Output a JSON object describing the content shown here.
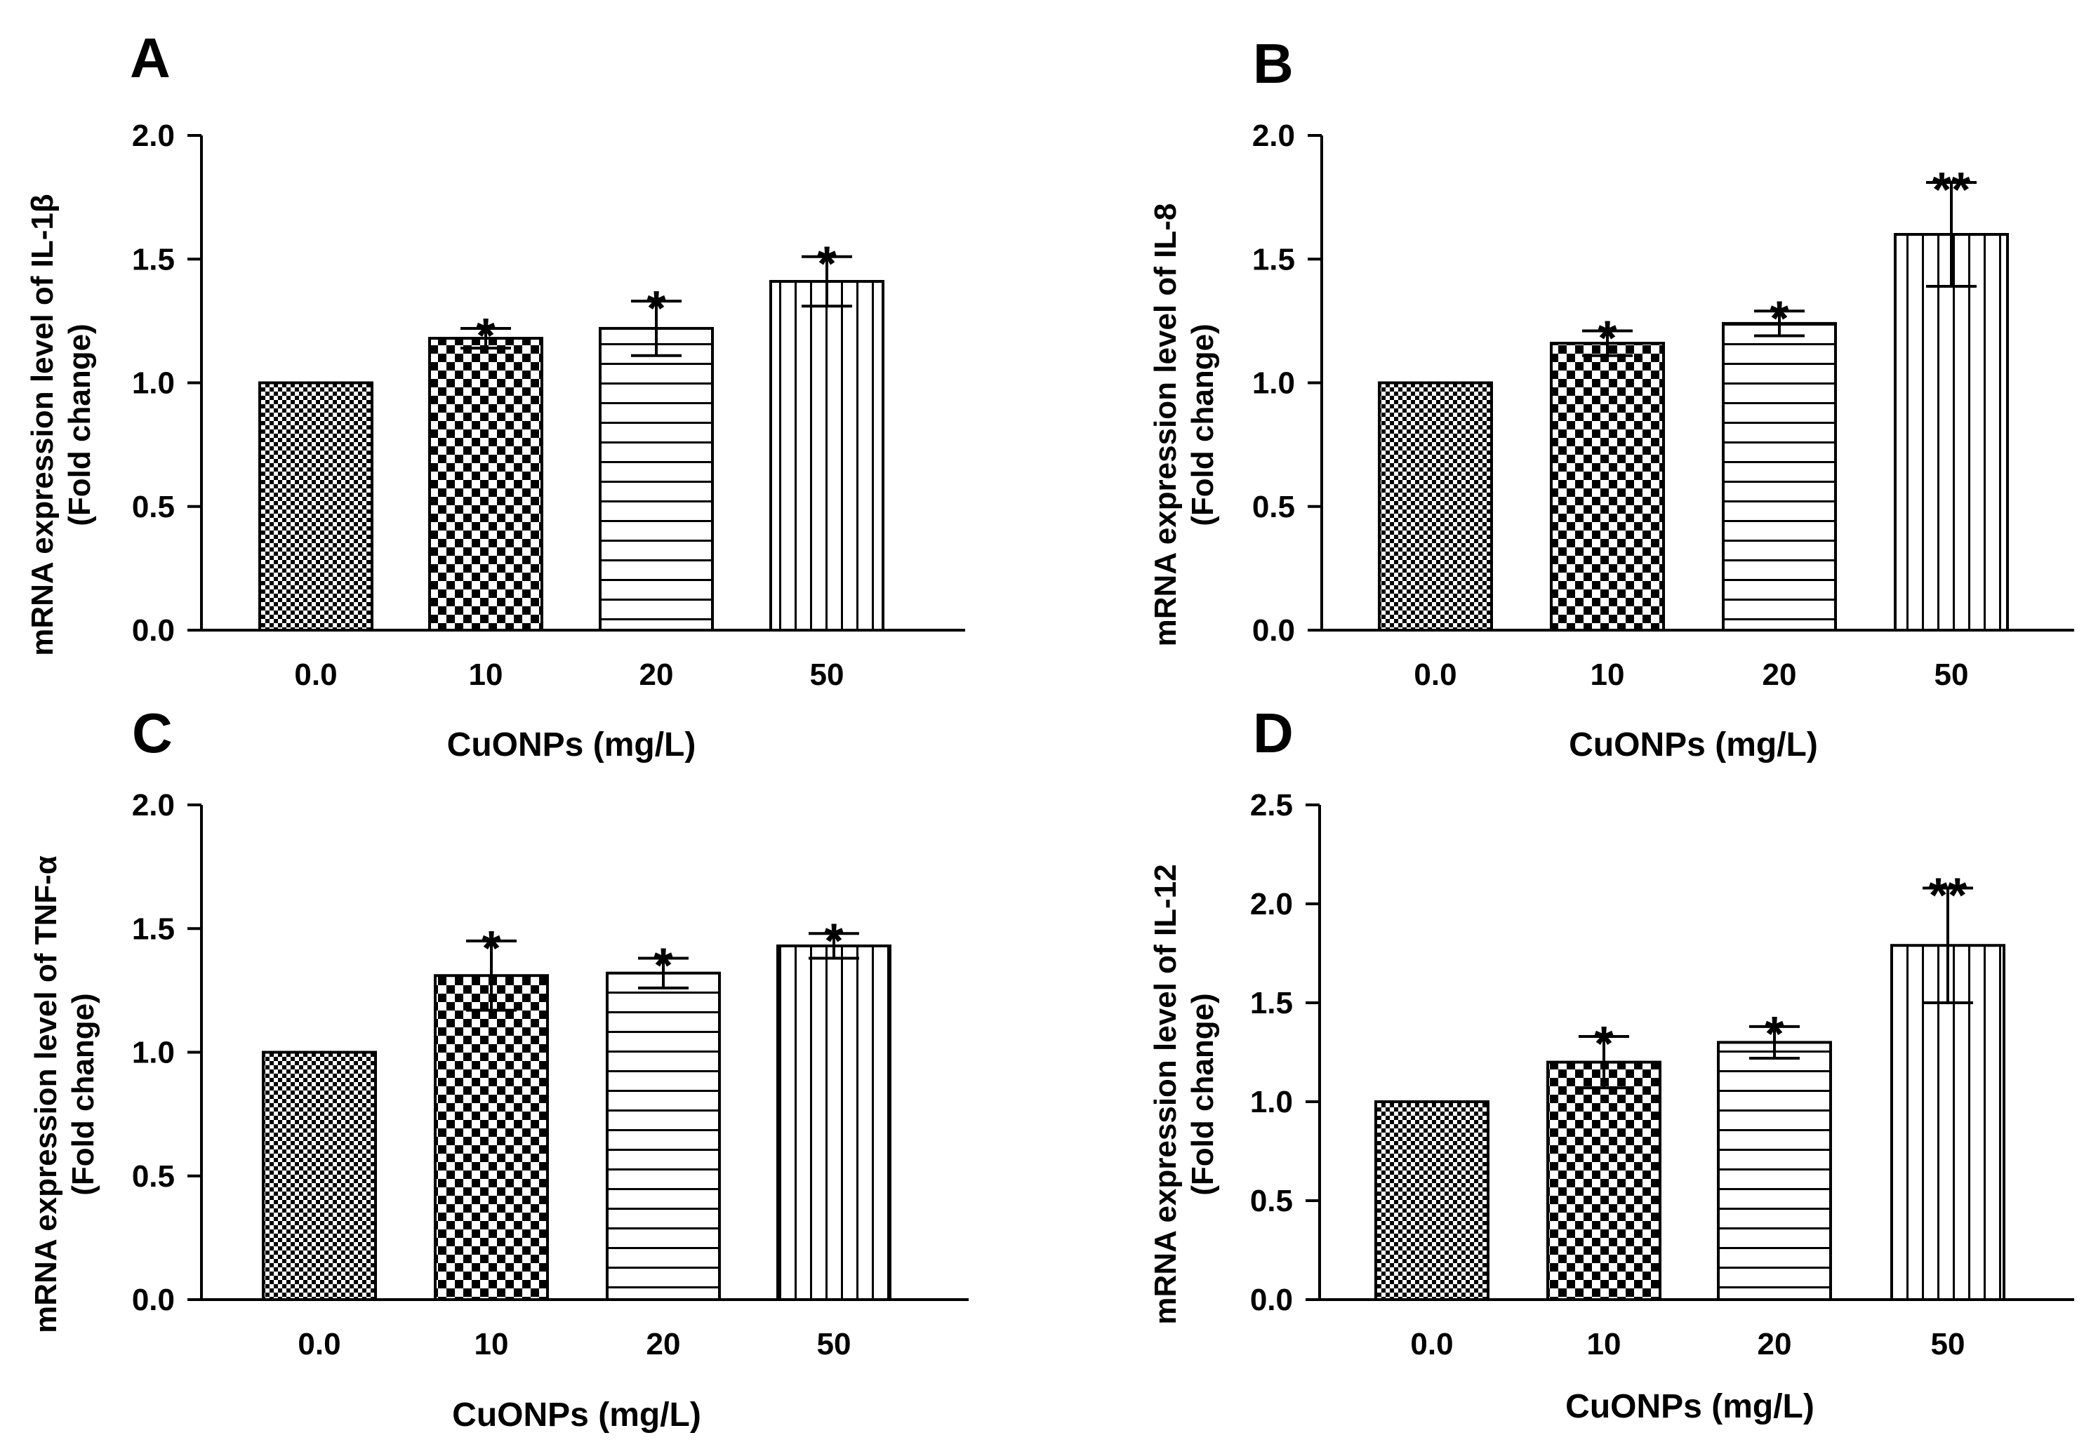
{
  "chart_data": [
    {
      "panel": "A",
      "type": "bar",
      "categories": [
        "0.0",
        "10",
        "20",
        "50"
      ],
      "values": [
        1.0,
        1.18,
        1.22,
        1.41
      ],
      "errors": [
        0.0,
        0.04,
        0.11,
        0.1
      ],
      "significance": [
        "",
        "*",
        "*",
        "*"
      ],
      "patterns": [
        "fine-check",
        "check",
        "horizontal",
        "vertical"
      ],
      "ylabel_line1": "mRNA expression level of IL-1β",
      "ylabel_line2": "(Fold change)",
      "xlabel": "CuONPs (mg/L)",
      "ylim": [
        0,
        2.0
      ],
      "yticks": [
        "0.0",
        "0.5",
        "1.0",
        "1.5",
        "2.0"
      ],
      "ytick_values": [
        0,
        0.5,
        1.0,
        1.5,
        2.0
      ]
    },
    {
      "panel": "B",
      "type": "bar",
      "categories": [
        "0.0",
        "10",
        "20",
        "50"
      ],
      "values": [
        1.0,
        1.16,
        1.24,
        1.6
      ],
      "errors": [
        0.0,
        0.05,
        0.05,
        0.21
      ],
      "significance": [
        "",
        "*",
        "*",
        "**"
      ],
      "patterns": [
        "fine-check",
        "check",
        "horizontal",
        "vertical"
      ],
      "ylabel_line1": "mRNA expression level of IL-8",
      "ylabel_line2": "(Fold change)",
      "xlabel": "CuONPs (mg/L)",
      "ylim": [
        0,
        2.0
      ],
      "yticks": [
        "0.0",
        "0.5",
        "1.0",
        "1.5",
        "2.0"
      ],
      "ytick_values": [
        0,
        0.5,
        1.0,
        1.5,
        2.0
      ]
    },
    {
      "panel": "C",
      "type": "bar",
      "categories": [
        "0.0",
        "10",
        "20",
        "50"
      ],
      "values": [
        1.0,
        1.31,
        1.32,
        1.43
      ],
      "errors": [
        0.0,
        0.14,
        0.06,
        0.05
      ],
      "significance": [
        "",
        "*",
        "*",
        "*"
      ],
      "patterns": [
        "fine-check",
        "check",
        "horizontal",
        "vertical"
      ],
      "ylabel_line1": "mRNA expression level of TNF-α",
      "ylabel_line2": "(Fold change)",
      "xlabel": "CuONPs (mg/L)",
      "ylim": [
        0,
        2.0
      ],
      "yticks": [
        "0.0",
        "0.5",
        "1.0",
        "1.5",
        "2.0"
      ],
      "ytick_values": [
        0,
        0.5,
        1.0,
        1.5,
        2.0
      ]
    },
    {
      "panel": "D",
      "type": "bar",
      "categories": [
        "0.0",
        "10",
        "20",
        "50"
      ],
      "values": [
        1.0,
        1.2,
        1.3,
        1.79
      ],
      "errors": [
        0.0,
        0.13,
        0.08,
        0.29
      ],
      "significance": [
        "",
        "*",
        "*",
        "**"
      ],
      "patterns": [
        "fine-check",
        "check",
        "horizontal",
        "vertical"
      ],
      "ylabel_line1": "mRNA expression level of IL-12",
      "ylabel_line2": "(Fold change)",
      "xlabel": "CuONPs (mg/L)",
      "ylim": [
        0,
        2.5
      ],
      "yticks": [
        "0.0",
        "0.5",
        "1.0",
        "1.5",
        "2.0",
        "2.5"
      ],
      "ytick_values": [
        0,
        0.5,
        1.0,
        1.5,
        2.0,
        2.5
      ]
    }
  ]
}
